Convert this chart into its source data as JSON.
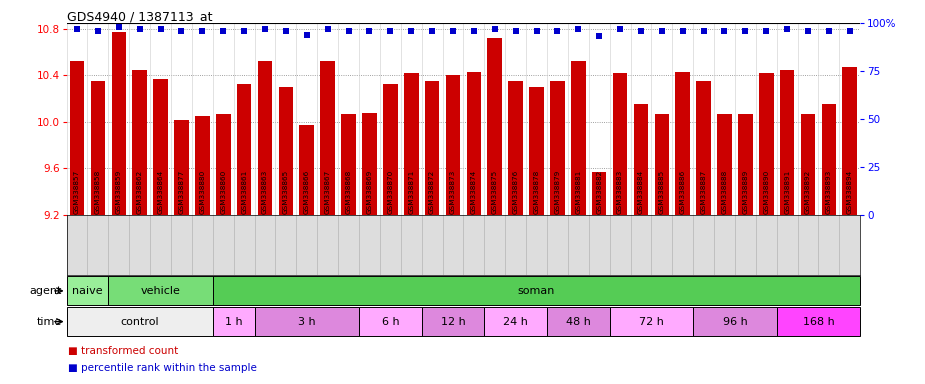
{
  "title": "GDS4940 / 1387113_at",
  "samples": [
    "GSM338857",
    "GSM338858",
    "GSM338859",
    "GSM338862",
    "GSM338864",
    "GSM338877",
    "GSM338880",
    "GSM338860",
    "GSM338861",
    "GSM338863",
    "GSM338865",
    "GSM338866",
    "GSM338867",
    "GSM338868",
    "GSM338869",
    "GSM338870",
    "GSM338871",
    "GSM338872",
    "GSM338873",
    "GSM338874",
    "GSM338875",
    "GSM338876",
    "GSM338878",
    "GSM338879",
    "GSM338881",
    "GSM338882",
    "GSM338883",
    "GSM338884",
    "GSM338885",
    "GSM338886",
    "GSM338887",
    "GSM338888",
    "GSM338889",
    "GSM338890",
    "GSM338891",
    "GSM338892",
    "GSM338893",
    "GSM338894"
  ],
  "bar_values": [
    10.52,
    10.35,
    10.77,
    10.45,
    10.37,
    10.02,
    10.05,
    10.07,
    10.33,
    10.52,
    10.3,
    9.97,
    10.52,
    10.07,
    10.08,
    10.33,
    10.42,
    10.35,
    10.4,
    10.43,
    10.72,
    10.35,
    10.3,
    10.35,
    10.52,
    9.57,
    10.42,
    10.15,
    10.07,
    10.43,
    10.35,
    10.07,
    10.07,
    10.42,
    10.45,
    10.07,
    10.15,
    10.47
  ],
  "percentile_values": [
    97,
    96,
    98,
    97,
    97,
    96,
    96,
    96,
    96,
    97,
    96,
    94,
    97,
    96,
    96,
    96,
    96,
    96,
    96,
    96,
    97,
    96,
    96,
    96,
    97,
    93,
    97,
    96,
    96,
    96,
    96,
    96,
    96,
    96,
    97,
    96,
    96,
    96
  ],
  "ymin": 9.2,
  "ymax": 10.85,
  "yticks_left": [
    9.2,
    9.6,
    10.0,
    10.4,
    10.8
  ],
  "yticks_right": [
    0,
    25,
    50,
    75,
    100
  ],
  "bar_color": "#cc0000",
  "dot_color": "#0000cc",
  "agent_groups": [
    {
      "label": "naive",
      "start": 0,
      "end": 2,
      "color": "#99ee99"
    },
    {
      "label": "vehicle",
      "start": 2,
      "end": 7,
      "color": "#77dd77"
    },
    {
      "label": "soman",
      "start": 7,
      "end": 38,
      "color": "#55cc55"
    }
  ],
  "time_groups": [
    {
      "label": "control",
      "start": 0,
      "end": 7,
      "color": "#eeeeee"
    },
    {
      "label": "1 h",
      "start": 7,
      "end": 9,
      "color": "#ffaaff"
    },
    {
      "label": "3 h",
      "start": 9,
      "end": 14,
      "color": "#dd88dd"
    },
    {
      "label": "6 h",
      "start": 14,
      "end": 17,
      "color": "#ffaaff"
    },
    {
      "label": "12 h",
      "start": 17,
      "end": 20,
      "color": "#dd88dd"
    },
    {
      "label": "24 h",
      "start": 20,
      "end": 23,
      "color": "#ffaaff"
    },
    {
      "label": "48 h",
      "start": 23,
      "end": 26,
      "color": "#dd88dd"
    },
    {
      "label": "72 h",
      "start": 26,
      "end": 30,
      "color": "#ffaaff"
    },
    {
      "label": "96 h",
      "start": 30,
      "end": 34,
      "color": "#dd88dd"
    },
    {
      "label": "168 h",
      "start": 34,
      "end": 38,
      "color": "#ff44ff"
    }
  ]
}
